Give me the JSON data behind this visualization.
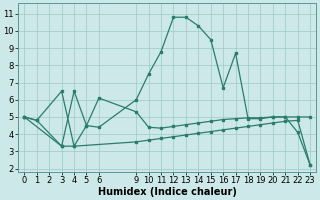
{
  "line1_x": [
    0,
    1,
    3,
    4,
    5,
    6,
    9,
    10,
    11,
    12,
    13,
    14,
    15,
    16,
    17,
    18,
    19,
    20,
    21,
    22,
    23
  ],
  "line1_y": [
    5.0,
    4.8,
    6.5,
    3.3,
    4.5,
    4.4,
    6.0,
    7.5,
    8.8,
    10.8,
    10.8,
    10.3,
    9.5,
    6.7,
    8.7,
    4.9,
    4.9,
    5.0,
    5.0,
    4.1,
    2.2
  ],
  "line2_x": [
    0,
    1,
    3,
    4,
    5,
    6,
    9,
    10,
    11,
    12,
    13,
    14,
    15,
    16,
    17,
    18,
    19,
    20,
    21,
    22,
    23
  ],
  "line2_y": [
    5.0,
    4.8,
    3.3,
    6.5,
    4.5,
    6.1,
    5.3,
    4.4,
    4.35,
    4.45,
    4.55,
    4.65,
    4.75,
    4.85,
    4.9,
    4.95,
    4.95,
    5.0,
    5.0,
    5.0,
    5.0
  ],
  "line3_x": [
    0,
    3,
    4,
    9,
    10,
    11,
    12,
    13,
    14,
    15,
    16,
    17,
    18,
    19,
    20,
    21,
    22,
    23
  ],
  "line3_y": [
    5.0,
    3.3,
    3.3,
    3.55,
    3.65,
    3.75,
    3.85,
    3.95,
    4.05,
    4.15,
    4.25,
    4.35,
    4.45,
    4.55,
    4.65,
    4.75,
    4.8,
    2.2
  ],
  "line_color": "#2a7d6e",
  "bg_color": "#cce8e8",
  "grid_color": "#9dc8c8",
  "xlabel": "Humidex (Indice chaleur)",
  "xticks": [
    0,
    1,
    2,
    3,
    4,
    5,
    6,
    9,
    10,
    11,
    12,
    13,
    14,
    15,
    16,
    17,
    18,
    19,
    20,
    21,
    22,
    23
  ],
  "yticks": [
    2,
    3,
    4,
    5,
    6,
    7,
    8,
    9,
    10,
    11
  ],
  "xlim": [
    -0.5,
    23.5
  ],
  "ylim": [
    1.8,
    11.6
  ],
  "xlabel_fontsize": 7,
  "tick_fontsize": 6
}
